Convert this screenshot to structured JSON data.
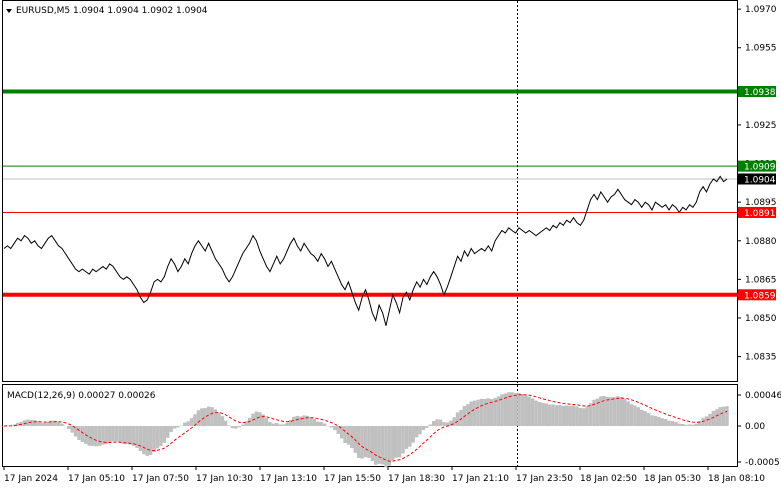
{
  "header": {
    "symbol_line": "EURUSD,M5  1.0904 1.0904 1.0902 1.0904"
  },
  "macd": {
    "label": "MACD(12,26,9) 0.00027 0.00026",
    "ticks": [
      "0.00046",
      "0.00",
      "-0.0005"
    ],
    "histogram_color": "#c0c0c0",
    "signal_color": "#ff0000"
  },
  "price_axis": {
    "ticks": [
      "1.0970",
      "1.0955",
      "1.0925",
      "1.0910",
      "1.0895",
      "1.0880",
      "1.0865",
      "1.0850",
      "1.0835"
    ]
  },
  "levels": [
    {
      "label": "1.0938",
      "color": "#008000",
      "kind": "thick"
    },
    {
      "label": "1.0909",
      "color": "#008000",
      "kind": "thin"
    },
    {
      "label": "1.0904",
      "color": "#000000",
      "kind": "current"
    },
    {
      "label": "1.0891",
      "color": "#ff0000",
      "kind": "thin"
    },
    {
      "label": "1.0859",
      "color": "#ff0000",
      "kind": "thick"
    }
  ],
  "time_axis": {
    "ticks": [
      "17 Jan 2024",
      "17 Jan 05:10",
      "17 Jan 07:50",
      "17 Jan 10:30",
      "17 Jan 13:10",
      "17 Jan 15:50",
      "17 Jan 18:30",
      "17 Jan 21:10",
      "17 Jan 23:50",
      "18 Jan 02:50",
      "18 Jan 05:30",
      "18 Jan 08:10"
    ]
  },
  "chart_data": {
    "type": "line",
    "title": "EURUSD,M5",
    "ylim": [
      1.0829,
      1.0972
    ],
    "series": [
      {
        "name": "EURUSD",
        "x_step_minutes": 5,
        "values": [
          1.0877,
          1.0878,
          1.0877,
          1.0879,
          1.0881,
          1.088,
          1.0882,
          1.0881,
          1.0879,
          1.088,
          1.0878,
          1.0877,
          1.0879,
          1.0881,
          1.0882,
          1.088,
          1.0878,
          1.0877,
          1.0875,
          1.0873,
          1.0871,
          1.0869,
          1.0868,
          1.0869,
          1.0868,
          1.0867,
          1.0869,
          1.0868,
          1.0869,
          1.087,
          1.0869,
          1.0871,
          1.087,
          1.0868,
          1.0866,
          1.0865,
          1.0866,
          1.0865,
          1.0863,
          1.0861,
          1.0858,
          1.0856,
          1.0857,
          1.086,
          1.0864,
          1.0865,
          1.0864,
          1.0866,
          1.087,
          1.0873,
          1.0871,
          1.0868,
          1.087,
          1.0873,
          1.0871,
          1.0875,
          1.0878,
          1.088,
          1.0878,
          1.0876,
          1.0879,
          1.0876,
          1.0873,
          1.0871,
          1.0869,
          1.0866,
          1.0864,
          1.0866,
          1.0869,
          1.0872,
          1.0875,
          1.0877,
          1.0879,
          1.0882,
          1.088,
          1.0876,
          1.0873,
          1.087,
          1.0868,
          1.0871,
          1.0874,
          1.0871,
          1.0873,
          1.0876,
          1.0879,
          1.0881,
          1.0878,
          1.0876,
          1.0879,
          1.0877,
          1.0875,
          1.0874,
          1.0872,
          1.0875,
          1.0873,
          1.087,
          1.0872,
          1.0869,
          1.0866,
          1.0863,
          1.0861,
          1.0864,
          1.086,
          1.0856,
          1.0853,
          1.0858,
          1.0861,
          1.0857,
          1.0852,
          1.0849,
          1.0855,
          1.0852,
          1.0847,
          1.0853,
          1.0859,
          1.0856,
          1.0852,
          1.0858,
          1.086,
          1.0857,
          1.0861,
          1.0864,
          1.0862,
          1.0865,
          1.0863,
          1.0866,
          1.0868,
          1.0866,
          1.0863,
          1.0859,
          1.0862,
          1.0866,
          1.087,
          1.0874,
          1.0872,
          1.0876,
          1.0874,
          1.0877,
          1.0875,
          1.0876,
          1.0877,
          1.0876,
          1.0878,
          1.0876,
          1.088,
          1.0882,
          1.0884,
          1.0883,
          1.0885,
          1.0884,
          1.0883,
          1.0885,
          1.0884,
          1.0883,
          1.0884,
          1.0883,
          1.0882,
          1.0883,
          1.0884,
          1.0885,
          1.0884,
          1.0886,
          1.0885,
          1.0887,
          1.0886,
          1.0888,
          1.0887,
          1.0889,
          1.0887,
          1.0886,
          1.0888,
          1.0892,
          1.0896,
          1.0898,
          1.0896,
          1.0899,
          1.0897,
          1.0895,
          1.0897,
          1.0898,
          1.09,
          1.0898,
          1.0896,
          1.0895,
          1.0894,
          1.0896,
          1.0895,
          1.0893,
          1.0895,
          1.0894,
          1.0892,
          1.0895,
          1.0894,
          1.0893,
          1.0894,
          1.0892,
          1.0894,
          1.0893,
          1.0891,
          1.0893,
          1.0892,
          1.0894,
          1.0893,
          1.0895,
          1.0899,
          1.0901,
          1.0899,
          1.0902,
          1.0904,
          1.0903,
          1.0905,
          1.0903,
          1.0904
        ]
      }
    ]
  }
}
